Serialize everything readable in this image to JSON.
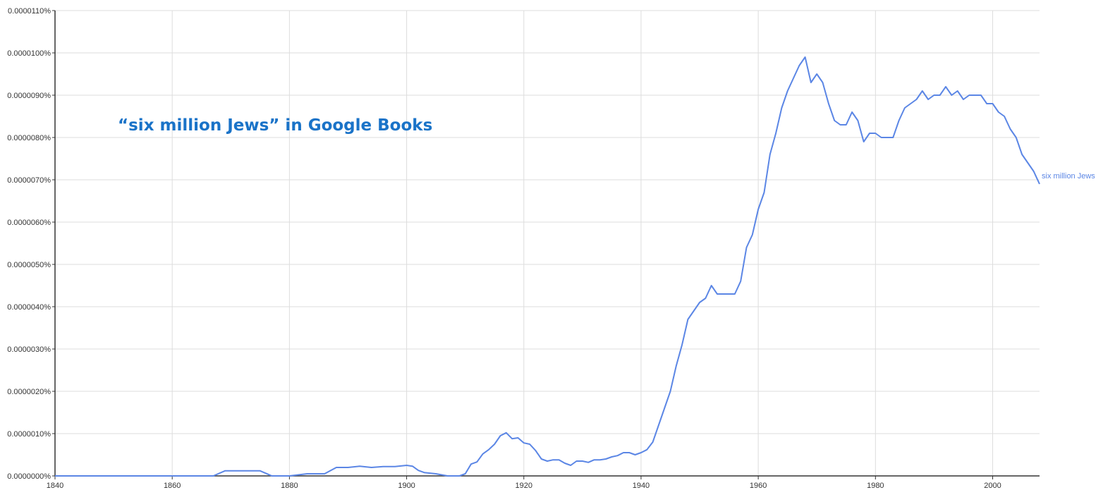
{
  "chart_data": {
    "type": "line",
    "title": "“six million Jews” in Google Books",
    "xlabel": "",
    "ylabel": "",
    "xlim": [
      1840,
      2008
    ],
    "ylim": [
      0,
      1.1e-05
    ],
    "x_ticks": [
      "1840",
      "1860",
      "1880",
      "1900",
      "1920",
      "1940",
      "1960",
      "1980",
      "2000"
    ],
    "y_ticks": [
      "0.0000000%",
      "0.0000010%",
      "0.0000020%",
      "0.0000030%",
      "0.0000040%",
      "0.0000050%",
      "0.0000060%",
      "0.0000070%",
      "0.0000080%",
      "0.0000090%",
      "0.0000100%",
      "0.0000110%"
    ],
    "grid": true,
    "colors": {
      "series": "#5b86e5",
      "title": "#1a73c8",
      "grid": "#dddddd",
      "axis": "#333333"
    },
    "series": [
      {
        "name": "six million Jews",
        "x": [
          1840,
          1867,
          1869,
          1875,
          1877,
          1880,
          1883,
          1886,
          1888,
          1890,
          1892,
          1894,
          1896,
          1898,
          1900,
          1901,
          1902,
          1903,
          1905,
          1907,
          1909,
          1910,
          1911,
          1912,
          1913,
          1914,
          1915,
          1916,
          1917,
          1918,
          1919,
          1920,
          1921,
          1922,
          1923,
          1924,
          1925,
          1926,
          1927,
          1928,
          1929,
          1930,
          1931,
          1932,
          1933,
          1934,
          1935,
          1936,
          1937,
          1938,
          1939,
          1940,
          1941,
          1942,
          1943,
          1944,
          1945,
          1946,
          1947,
          1948,
          1949,
          1950,
          1951,
          1952,
          1953,
          1954,
          1955,
          1956,
          1957,
          1958,
          1959,
          1960,
          1961,
          1962,
          1963,
          1964,
          1965,
          1966,
          1967,
          1968,
          1969,
          1970,
          1971,
          1972,
          1973,
          1974,
          1975,
          1976,
          1977,
          1978,
          1979,
          1980,
          1981,
          1982,
          1983,
          1984,
          1985,
          1986,
          1987,
          1988,
          1989,
          1990,
          1991,
          1992,
          1993,
          1994,
          1995,
          1996,
          1997,
          1998,
          1999,
          2000,
          2001,
          2002,
          2003,
          2004,
          2005,
          2006,
          2007,
          2008
        ],
        "values": [
          0.0,
          0.0,
          1.2e-07,
          1.2e-07,
          0.0,
          0.0,
          5e-08,
          5e-08,
          2e-07,
          2e-07,
          2.3e-07,
          2e-07,
          2.2e-07,
          2.2e-07,
          2.5e-07,
          2.3e-07,
          1.3e-07,
          8e-08,
          5e-08,
          0.0,
          0.0,
          5e-08,
          2.8e-07,
          3.3e-07,
          5.2e-07,
          6.2e-07,
          7.5e-07,
          9.5e-07,
          1.02e-06,
          8.8e-07,
          9e-07,
          7.8e-07,
          7.5e-07,
          6e-07,
          4e-07,
          3.5e-07,
          3.8e-07,
          3.8e-07,
          3e-07,
          2.5e-07,
          3.5e-07,
          3.5e-07,
          3.2e-07,
          3.8e-07,
          3.8e-07,
          4e-07,
          4.5e-07,
          4.8e-07,
          5.5e-07,
          5.5e-07,
          5e-07,
          5.5e-07,
          6.2e-07,
          8e-07,
          1.2e-06,
          1.6e-06,
          2e-06,
          2.6e-06,
          3.1e-06,
          3.7e-06,
          3.9e-06,
          4.1e-06,
          4.2e-06,
          4.5e-06,
          4.3e-06,
          4.3e-06,
          4.3e-06,
          4.3e-06,
          4.6e-06,
          5.4e-06,
          5.7e-06,
          6.3e-06,
          6.7e-06,
          7.6e-06,
          8.1e-06,
          8.7e-06,
          9.1e-06,
          9.4e-06,
          9.7e-06,
          9.9e-06,
          9.3e-06,
          9.5e-06,
          9.3e-06,
          8.8e-06,
          8.4e-06,
          8.3e-06,
          8.3e-06,
          8.6e-06,
          8.4e-06,
          7.9e-06,
          8.1e-06,
          8.1e-06,
          8e-06,
          8e-06,
          8e-06,
          8.4e-06,
          8.7e-06,
          8.8e-06,
          8.9e-06,
          9.1e-06,
          8.9e-06,
          9e-06,
          9e-06,
          9.2e-06,
          9e-06,
          9.1e-06,
          8.9e-06,
          9e-06,
          9e-06,
          9e-06,
          8.8e-06,
          8.8e-06,
          8.6e-06,
          8.5e-06,
          8.2e-06,
          8e-06,
          7.6e-06,
          7.4e-06,
          7.2e-06,
          6.9e-06
        ]
      }
    ]
  }
}
